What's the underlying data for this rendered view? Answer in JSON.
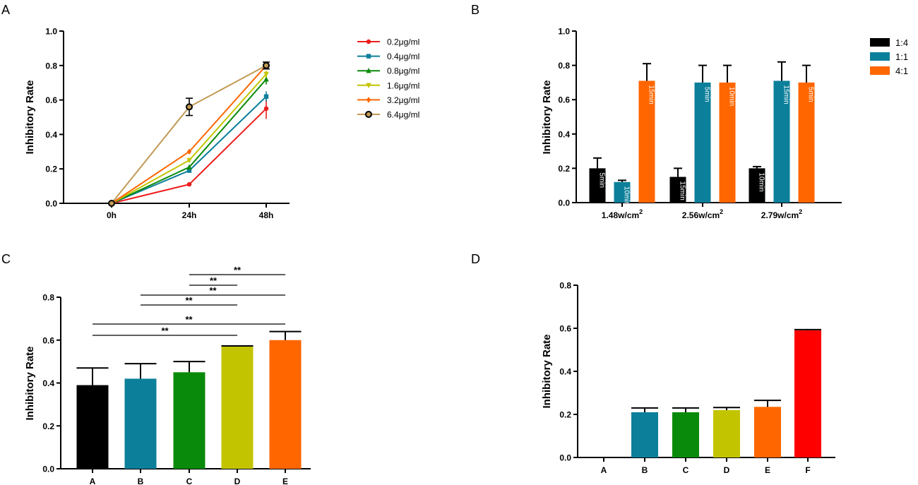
{
  "colors": {
    "red": "#ee1c1c",
    "teal": "#0c7f9a",
    "green": "#0a8a0a",
    "olive": "#c3c400",
    "orange": "#ff6600",
    "tan": "#c19a55",
    "black": "#000000",
    "bright_red": "#ff0000"
  },
  "chart_data": [
    {
      "panel": "A",
      "type": "line",
      "title": "",
      "xlabel": "",
      "ylabel": "Inhibitory Rate",
      "x": [
        "0h",
        "24h",
        "48h"
      ],
      "ylim": [
        0,
        1.0
      ],
      "yticks": [
        "0.0",
        "0.2",
        "0.4",
        "0.6",
        "0.8",
        "1.0"
      ],
      "legend_position": "right",
      "series": [
        {
          "name": "0.2μg/ml",
          "values": [
            0,
            0.11,
            0.55
          ],
          "errors": [
            0,
            0,
            0.06
          ],
          "color": "#ee1c1c",
          "marker": "circle"
        },
        {
          "name": "0.4μg/ml",
          "values": [
            0,
            0.19,
            0.62
          ],
          "errors": [
            0,
            0,
            0.03
          ],
          "color": "#0c7f9a",
          "marker": "square"
        },
        {
          "name": "0.8μg/ml",
          "values": [
            0,
            0.21,
            0.72
          ],
          "errors": [
            0,
            0,
            0.03
          ],
          "color": "#0a8a0a",
          "marker": "triangle"
        },
        {
          "name": "1.6μg/ml",
          "values": [
            0,
            0.25,
            0.75
          ],
          "errors": [
            0,
            0,
            0.02
          ],
          "color": "#c3c400",
          "marker": "triangle-down"
        },
        {
          "name": "3.2μg/ml",
          "values": [
            0,
            0.3,
            0.8
          ],
          "errors": [
            0,
            0,
            0.02
          ],
          "color": "#ff6600",
          "marker": "diamond"
        },
        {
          "name": "6.4μg/ml",
          "values": [
            0,
            0.56,
            0.8
          ],
          "errors": [
            0,
            0.05,
            0.02
          ],
          "color": "#c19a55",
          "marker": "open-circle"
        }
      ]
    },
    {
      "panel": "B",
      "type": "bar",
      "title": "",
      "xlabel": "",
      "ylabel": "Inhibitory Rate",
      "categories": [
        "1.48w/cm",
        "2.56w/cm",
        "2.79w/cm"
      ],
      "category_superscript": "2",
      "ylim": [
        0,
        1.0
      ],
      "yticks": [
        "0.0",
        "0.2",
        "0.4",
        "0.6",
        "0.8",
        "1.0"
      ],
      "legend_position": "top-right",
      "series": [
        {
          "name": "1:4",
          "color": "#000000",
          "values": [
            0.2,
            0.15,
            0.2
          ],
          "errors": [
            0.06,
            0.05,
            0.01
          ],
          "labels": [
            "5min",
            "15min",
            "10min"
          ]
        },
        {
          "name": "1:1",
          "color": "#0c7f9a",
          "values": [
            0.12,
            0.7,
            0.71
          ],
          "errors": [
            0.01,
            0.1,
            0.11
          ],
          "labels": [
            "10min",
            "5min",
            "15min"
          ]
        },
        {
          "name": "4:1",
          "color": "#ff6600",
          "values": [
            0.71,
            0.7,
            0.7
          ],
          "errors": [
            0.1,
            0.1,
            0.1
          ],
          "labels": [
            "15min",
            "10min",
            "5min"
          ]
        }
      ]
    },
    {
      "panel": "C",
      "type": "bar",
      "title": "",
      "xlabel": "",
      "ylabel": "Inhibitory Rate",
      "categories": [
        "A",
        "B",
        "C",
        "D",
        "E"
      ],
      "values": [
        0.39,
        0.42,
        0.45,
        0.57,
        0.6
      ],
      "errors": [
        0.08,
        0.07,
        0.05,
        0.003,
        0.04
      ],
      "colors": [
        "#000000",
        "#0c7f9a",
        "#0a8a0a",
        "#c3c400",
        "#ff6600"
      ],
      "ylim": [
        0,
        0.8
      ],
      "yticks": [
        "0.0",
        "0.2",
        "0.4",
        "0.6",
        "0.8"
      ],
      "significance": [
        {
          "from": "C",
          "to": "E",
          "label": "**"
        },
        {
          "from": "C",
          "to": "D",
          "label": "**"
        },
        {
          "from": "B",
          "to": "E",
          "label": "**"
        },
        {
          "from": "B",
          "to": "D",
          "label": "**"
        },
        {
          "from": "A",
          "to": "E",
          "label": "**"
        },
        {
          "from": "A",
          "to": "D",
          "label": "**"
        }
      ]
    },
    {
      "panel": "D",
      "type": "bar",
      "title": "",
      "xlabel": "",
      "ylabel": "Inhibitory Rate",
      "categories": [
        "A",
        "B",
        "C",
        "D",
        "E",
        "F"
      ],
      "values": [
        0,
        0.21,
        0.21,
        0.22,
        0.235,
        0.59
      ],
      "errors": [
        0,
        0.02,
        0.02,
        0.012,
        0.03,
        0.004
      ],
      "colors": [
        "#000000",
        "#0c7f9a",
        "#0a8a0a",
        "#c3c400",
        "#ff6600",
        "#ff0000"
      ],
      "ylim": [
        0,
        0.8
      ],
      "yticks": [
        "0.0",
        "0.2",
        "0.4",
        "0.6",
        "0.8"
      ]
    }
  ]
}
